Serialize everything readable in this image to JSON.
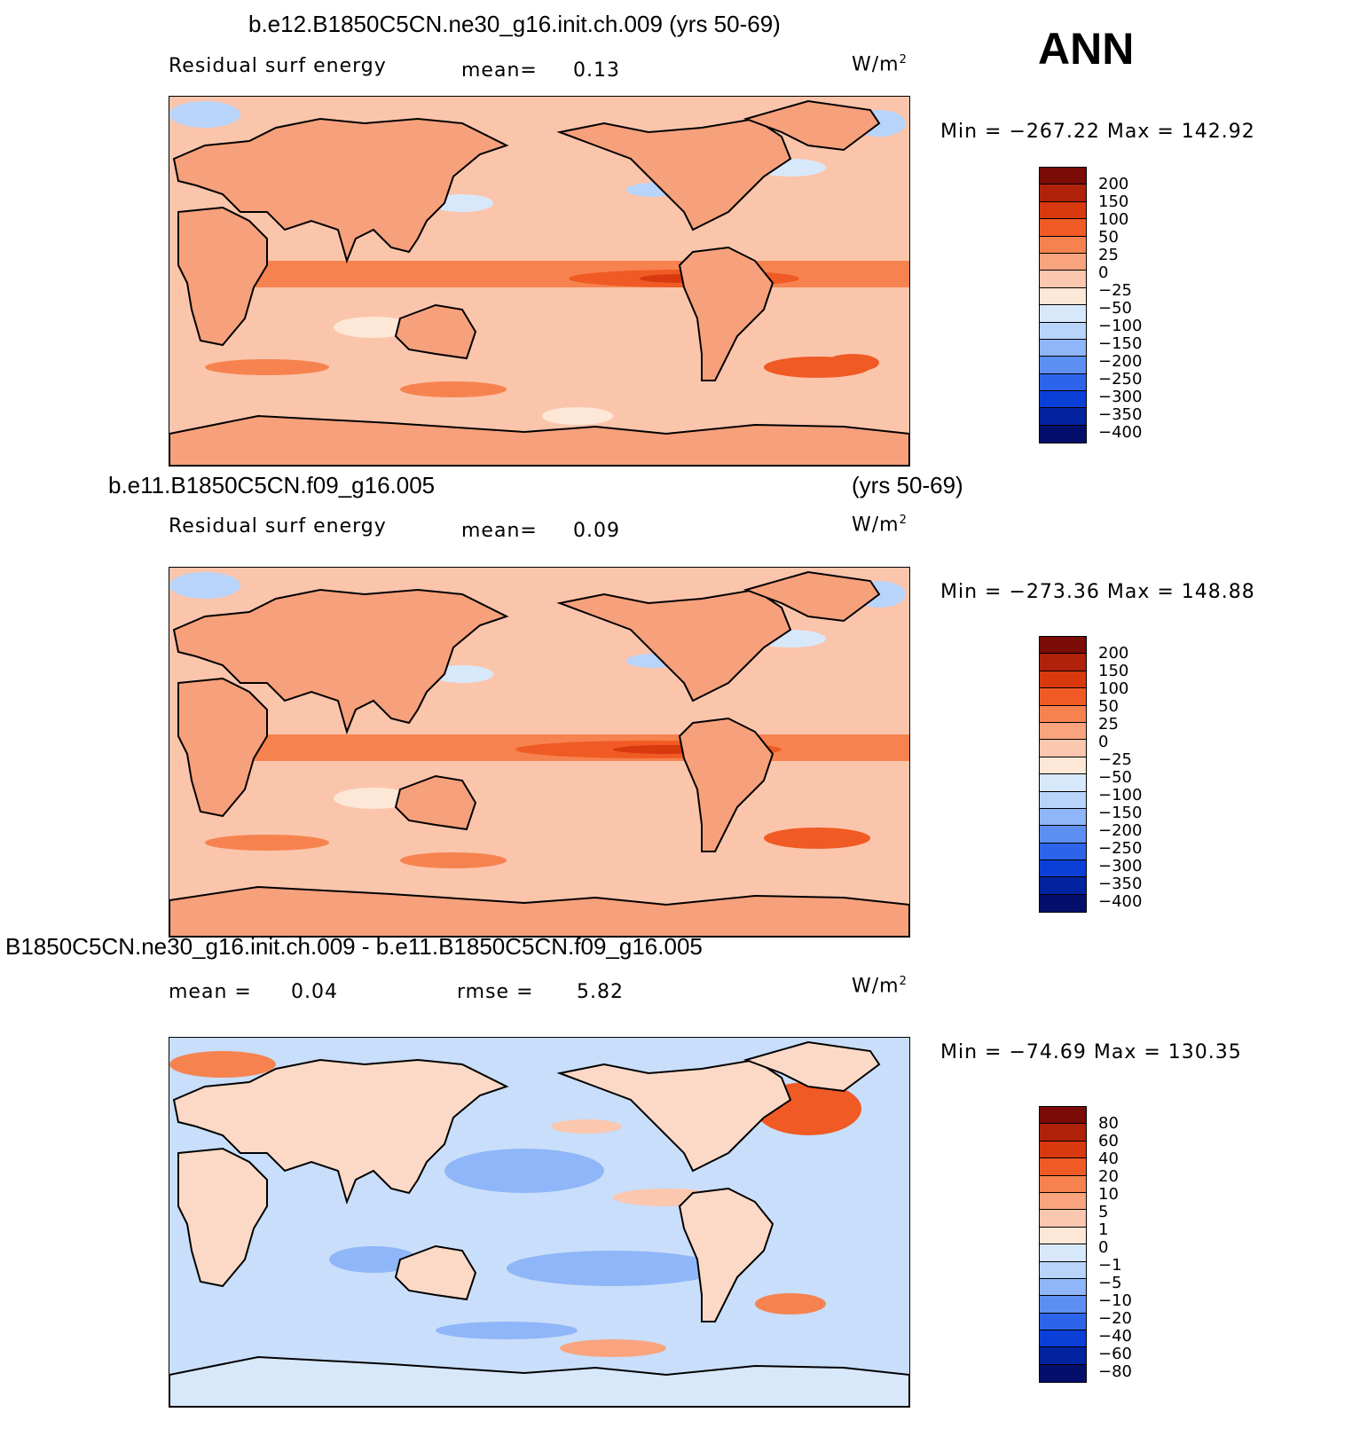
{
  "header": {
    "season": "ANN"
  },
  "panels": [
    {
      "title_left": "b.e12.B1850C5CN.ne30_g16.init.ch.009 (yrs 50-69)",
      "title_right": "",
      "variable": "Residual surf energy",
      "stat1_label": "mean=",
      "stat1_value": "0.13",
      "stat2_label": "",
      "stat2_value": "",
      "units": "W/m",
      "units_exp": "2",
      "minmax": "Min = −267.22 Max = 142.92",
      "colorbar": [
        "200",
        "150",
        "100",
        "50",
        "25",
        "0",
        "−25",
        "−50",
        "−100",
        "−150",
        "−200",
        "−250",
        "−300",
        "−350",
        "−400"
      ]
    },
    {
      "title_left": "b.e11.B1850C5CN.f09_g16.005",
      "title_right": "(yrs 50-69)",
      "variable": "Residual surf energy",
      "stat1_label": "mean=",
      "stat1_value": "0.09",
      "stat2_label": "",
      "stat2_value": "",
      "units": "W/m",
      "units_exp": "2",
      "minmax": "Min = −273.36 Max = 148.88",
      "colorbar": [
        "200",
        "150",
        "100",
        "50",
        "25",
        "0",
        "−25",
        "−50",
        "−100",
        "−150",
        "−200",
        "−250",
        "−300",
        "−350",
        "−400"
      ]
    },
    {
      "title_left": "B1850C5CN.ne30_g16.init.ch.009 - b.e11.B1850C5CN.f09_g16.005",
      "title_right": "",
      "variable": "",
      "stat1_label": "mean =",
      "stat1_value": "0.04",
      "stat2_label": "rmse =",
      "stat2_value": "5.82",
      "units": "W/m",
      "units_exp": "2",
      "minmax": "Min = −74.69 Max = 130.35",
      "colorbar": [
        "80",
        "60",
        "40",
        "20",
        "10",
        "5",
        "1",
        "0",
        "−1",
        "−5",
        "−10",
        "−20",
        "−40",
        "−60",
        "−80"
      ]
    }
  ],
  "colors": {
    "palette": [
      "#7a0b06",
      "#b0220a",
      "#d8390f",
      "#f05a24",
      "#f6834f",
      "#f9a47e",
      "#fbc7ae",
      "#fde7d6",
      "#d8e8fb",
      "#b8d4fa",
      "#8fb6f8",
      "#5d8ff3",
      "#2c64ea",
      "#0a3fd8",
      "#02239f",
      "#030f6b"
    ],
    "ocean_a": "#fbc5ac",
    "land_a": "#f6a07c",
    "ocean_diff": "#c9defa",
    "land_diff": "#fbd9c6"
  }
}
